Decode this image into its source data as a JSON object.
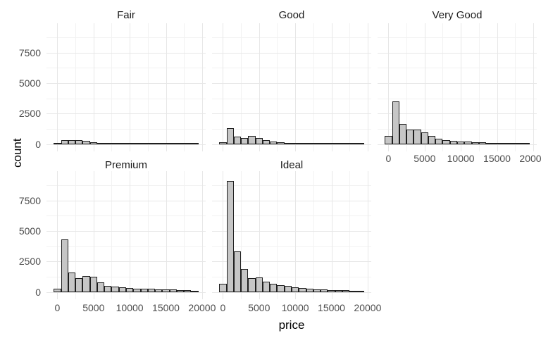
{
  "figure": {
    "y_axis_title": "count",
    "x_axis_title": "price"
  },
  "style": {
    "background": "#ffffff",
    "bar_fill": "#c6c6c6",
    "bar_stroke": "#1f1f1f",
    "grid_major": "#e7e7e7",
    "grid_minor": "#f2f2f2",
    "tick_label_color": "#4d4d4d",
    "strip_label_color": "#1a1a1a",
    "axis_title_color": "#000000"
  },
  "chart_data": {
    "type": "bar",
    "subtype": "faceted_histogram",
    "title": "",
    "xlabel": "price",
    "ylabel": "count",
    "bin_width": 1000,
    "bin_centers": [
      0,
      1000,
      2000,
      3000,
      4000,
      5000,
      6000,
      7000,
      8000,
      9000,
      10000,
      11000,
      12000,
      13000,
      14000,
      15000,
      16000,
      17000,
      18000,
      19000
    ],
    "x_tick_values": [
      0,
      5000,
      10000,
      15000,
      20000
    ],
    "x_tick_labels": [
      "0",
      "5000",
      "10000",
      "15000",
      "20000"
    ],
    "y_tick_values": [
      0,
      2500,
      5000,
      7500
    ],
    "y_tick_labels": [
      "0",
      "2500",
      "5000",
      "7500"
    ],
    "x_minor_gridlines": [
      2500,
      7500,
      12500,
      17500
    ],
    "y_minor_gridlines": [
      1250,
      3750,
      6250,
      8750
    ],
    "xlim": [
      -1500,
      20500
    ],
    "ylim": [
      -600,
      9900
    ],
    "grid": "on",
    "legend": "none",
    "facets": [
      {
        "label": "Fair",
        "row": 0,
        "col": 0,
        "show_x_axis": false,
        "counts": [
          55,
          300,
          320,
          330,
          280,
          150,
          55,
          40,
          32,
          28,
          25,
          22,
          18,
          15,
          12,
          10,
          8,
          6,
          5,
          4
        ]
      },
      {
        "label": "Good",
        "row": 0,
        "col": 1,
        "show_x_axis": false,
        "counts": [
          170,
          1300,
          640,
          470,
          690,
          480,
          310,
          220,
          140,
          110,
          90,
          70,
          55,
          45,
          35,
          28,
          22,
          16,
          12,
          8
        ]
      },
      {
        "label": "Very Good",
        "row": 0,
        "col": 2,
        "show_x_axis": true,
        "counts": [
          650,
          3500,
          1650,
          1200,
          1200,
          960,
          650,
          430,
          330,
          270,
          230,
          190,
          160,
          130,
          110,
          90,
          75,
          60,
          45,
          30
        ]
      },
      {
        "label": "Premium",
        "row": 1,
        "col": 0,
        "show_x_axis": true,
        "counts": [
          250,
          4300,
          1600,
          1140,
          1300,
          1230,
          800,
          510,
          420,
          360,
          310,
          290,
          280,
          250,
          230,
          210,
          190,
          170,
          140,
          80
        ]
      },
      {
        "label": "Ideal",
        "row": 1,
        "col": 1,
        "show_x_axis": true,
        "counts": [
          660,
          9100,
          3350,
          1890,
          1140,
          1190,
          815,
          660,
          570,
          470,
          380,
          340,
          280,
          230,
          200,
          170,
          150,
          130,
          110,
          60
        ]
      }
    ]
  }
}
